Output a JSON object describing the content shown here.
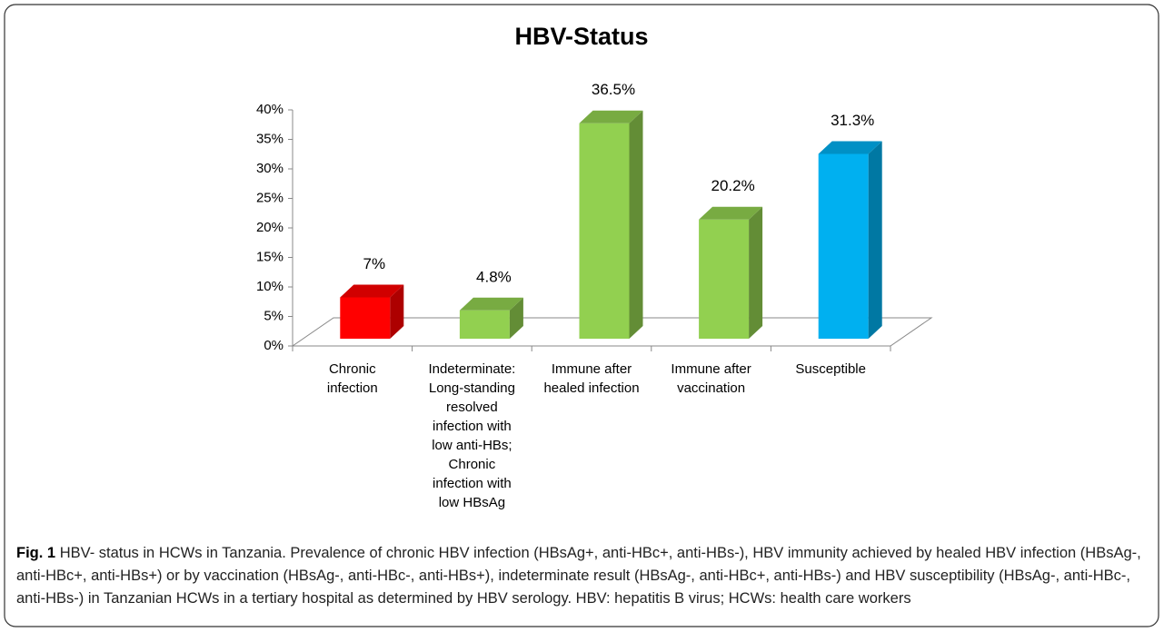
{
  "chart_data": {
    "type": "bar3d",
    "title": "HBV-Status",
    "categories": [
      [
        "Chronic",
        "infection"
      ],
      [
        "Indeterminate:",
        "Long-standing",
        "resolved",
        "infection with",
        "low anti-HBs;",
        "Chronic",
        "infection with",
        "low HBsAg"
      ],
      [
        "Immune after",
        "healed infection"
      ],
      [
        "Immune after",
        "vaccination"
      ],
      [
        "Susceptible"
      ]
    ],
    "values": [
      7,
      4.8,
      36.5,
      20.2,
      31.3
    ],
    "value_labels": [
      "7%",
      "4.8%",
      "36.5%",
      "20.2%",
      "31.3%"
    ],
    "colors": [
      "#ff0000",
      "#92d050",
      "#92d050",
      "#92d050",
      "#00b0f0"
    ],
    "ylim": [
      0,
      40
    ],
    "yticks": [
      {
        "value": 0,
        "label": "0%"
      },
      {
        "value": 5,
        "label": "5%"
      },
      {
        "value": 10,
        "label": "10%"
      },
      {
        "value": 15,
        "label": "15%"
      },
      {
        "value": 20,
        "label": "20%"
      },
      {
        "value": 25,
        "label": "25%"
      },
      {
        "value": 30,
        "label": "30%"
      },
      {
        "value": 35,
        "label": "35%"
      },
      {
        "value": 40,
        "label": "40%"
      }
    ]
  },
  "caption": {
    "label": "Fig. 1",
    "text": "HBV- status in HCWs in Tanzania. Prevalence of chronic HBV infection (HBsAg+, anti-HBc+, anti-HBs-), HBV immunity achieved by healed HBV infection (HBsAg-, anti-HBc+, anti-HBs+) or by vaccination (HBsAg-, anti-HBc-, anti-HBs+), indeterminate result (HBsAg-, anti-HBc+, anti-HBs-) and HBV susceptibility (HBsAg-, anti-HBc-, anti-HBs-) in Tanzanian HCWs in a tertiary hospital as determined by HBV serology. HBV: hepatitis B virus; HCWs: health care workers"
  }
}
